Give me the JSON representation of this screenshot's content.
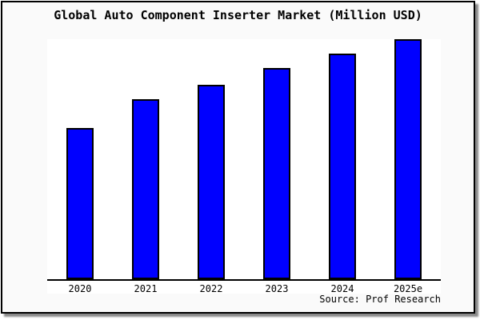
{
  "window": {
    "title": "Global Auto Component Inserter Market (Million USD)"
  },
  "source_note": "Source: Prof Research",
  "chart_data": {
    "type": "bar",
    "title": "Global Auto Component Inserter Market (Million USD)",
    "categories": [
      "2020",
      "2021",
      "2022",
      "2023",
      "2024",
      "2025e"
    ],
    "values": [
      63,
      75,
      81,
      88,
      94,
      100
    ],
    "xlabel": "",
    "ylabel": "",
    "ylim": [
      0,
      100
    ],
    "grid": false,
    "legend": "none",
    "y_axis_visible": false,
    "note": "No y-axis scale is shown in the image; values are bar heights estimated relative to the tallest bar (2025e = 100)",
    "bar_color": "#0000ff",
    "bar_border_color": "#000000",
    "source": "Source: Prof Research"
  },
  "colors": {
    "card_background": "#fafafa",
    "plot_background": "#ffffff",
    "frame_border": "#000000",
    "shadow": "#8a8a8a",
    "bar_fill": "#0000ff",
    "text": "#000000"
  }
}
